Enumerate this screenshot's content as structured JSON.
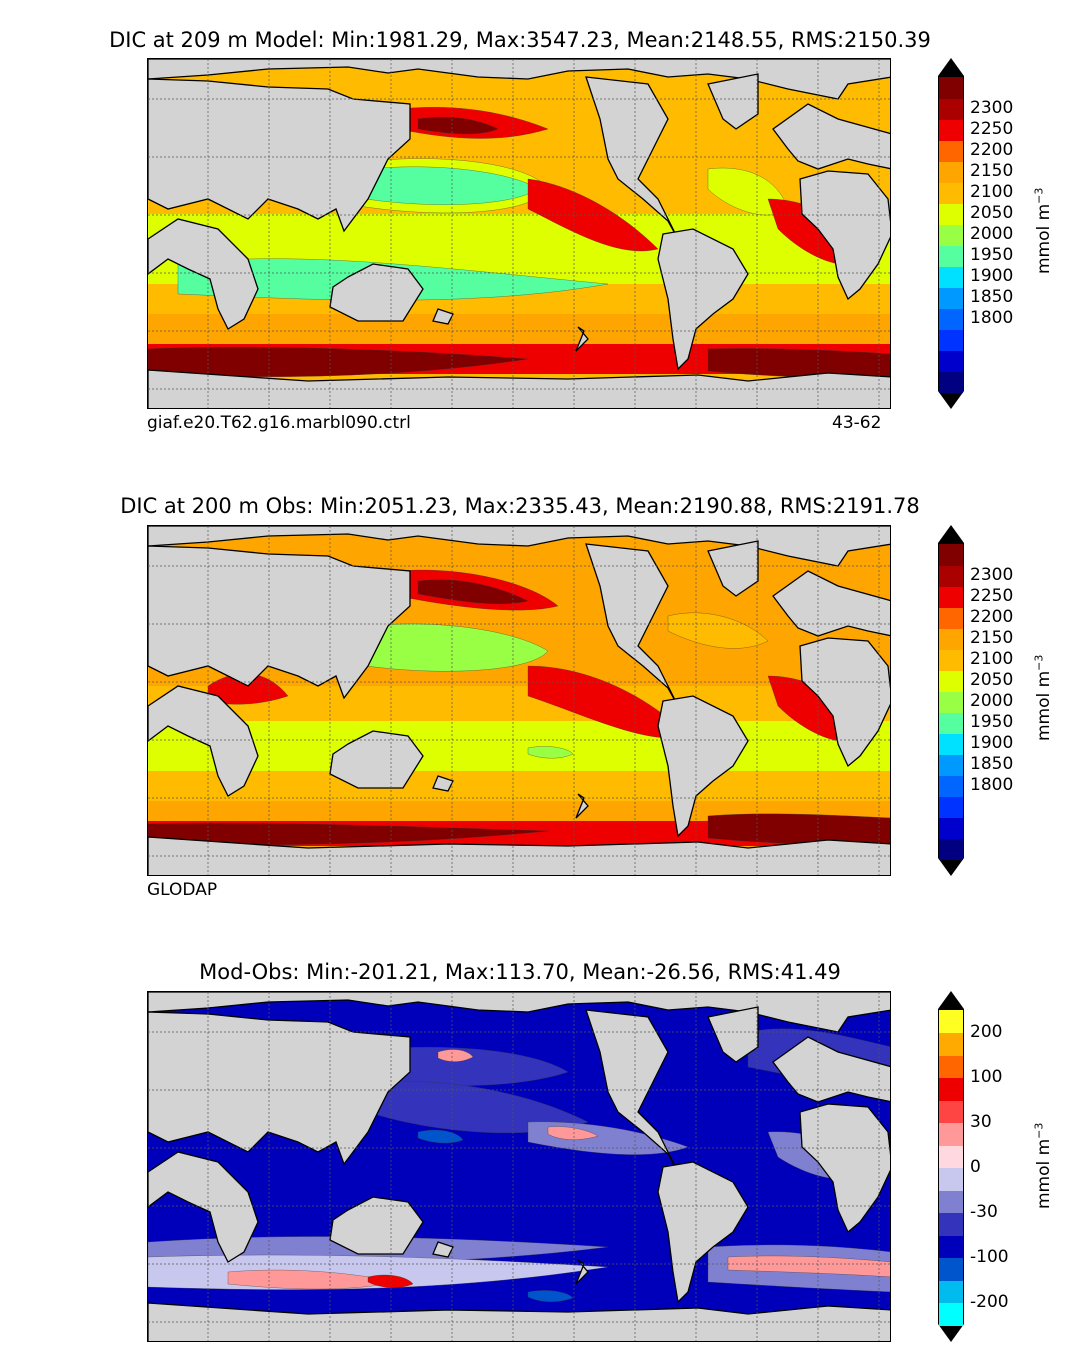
{
  "chart_data": [
    {
      "type": "heatmap",
      "title": "DIC at 209 m Model: Min:1981.29, Max:3547.23, Mean:2148.55, RMS:2150.39",
      "stats": {
        "depth_m": 209,
        "min": 1981.29,
        "max": 3547.23,
        "mean": 2148.55,
        "rms": 2150.39
      },
      "footer_left": "giaf.e20.T62.g16.marbl090.ctrl",
      "footer_right": "43-62",
      "colorbar": {
        "ticks": [
          "2300",
          "2250",
          "2200",
          "2150",
          "2100",
          "2050",
          "2000",
          "1950",
          "1900",
          "1850",
          "1800"
        ],
        "levels": [
          1775,
          1800,
          1825,
          1850,
          1875,
          1900,
          1925,
          1950,
          1975,
          2000,
          2025,
          2050,
          2075,
          2100,
          2125,
          2150,
          2175,
          2200,
          2225,
          2250,
          2275,
          2300,
          2325
        ],
        "colors": [
          "#000080",
          "#0000cd",
          "#0033ff",
          "#0066ff",
          "#0099ff",
          "#00e0ff",
          "#55ffa0",
          "#99ff44",
          "#ddff00",
          "#ffbb00",
          "#ffa500",
          "#ff6600",
          "#ee0000",
          "#aa0000",
          "#800000"
        ],
        "extend": "both",
        "unit_label": "mmol m",
        "unit_exp": "−3"
      },
      "grid": true
    },
    {
      "type": "heatmap",
      "title": "DIC at 200 m Obs: Min:2051.23, Max:2335.43, Mean:2190.88, RMS:2191.78",
      "stats": {
        "depth_m": 200,
        "min": 2051.23,
        "max": 2335.43,
        "mean": 2190.88,
        "rms": 2191.78
      },
      "footer_left": "GLODAP",
      "colorbar": {
        "ticks": [
          "2300",
          "2250",
          "2200",
          "2150",
          "2100",
          "2050",
          "2000",
          "1950",
          "1900",
          "1850",
          "1800"
        ],
        "extend": "both",
        "unit_label": "mmol m",
        "unit_exp": "−3"
      },
      "grid": true
    },
    {
      "type": "heatmap",
      "title": "Mod-Obs: Min:-201.21, Max:113.70, Mean:-26.56, RMS:41.49",
      "stats": {
        "min": -201.21,
        "max": 113.7,
        "mean": -26.56,
        "rms": 41.49
      },
      "colorbar": {
        "ticks": [
          "200",
          "100",
          "30",
          "0",
          "-30",
          "-100",
          "-200"
        ],
        "colors": [
          "#00ffff",
          "#00bbee",
          "#0055cc",
          "#0000bb",
          "#3333bb",
          "#8080d0",
          "#c8c8ee",
          "#ffd8e0",
          "#ff9999",
          "#ff4444",
          "#ee0000",
          "#ff6600",
          "#ffaa00",
          "#ffff22"
        ],
        "extend": "both",
        "unit_label": "mmol m",
        "unit_exp": "−3"
      },
      "grid": true
    }
  ]
}
